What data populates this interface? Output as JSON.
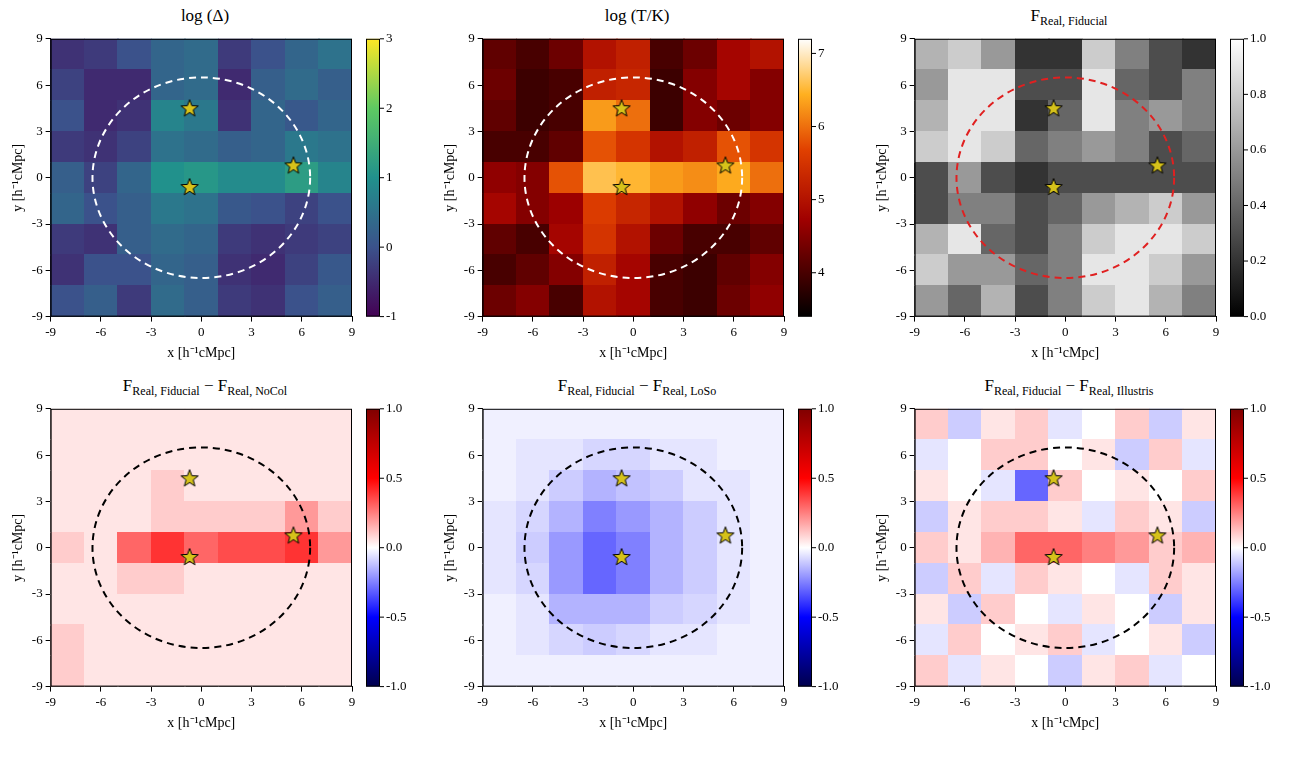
{
  "chart_data": [
    {
      "type": "heatmap",
      "title": [
        "log (Δ)"
      ],
      "x_label": "x [h⁻¹cMpc]",
      "y_label": "y [h⁻¹cMpc]",
      "xlim": [
        -9,
        9
      ],
      "xticks": [
        -9,
        -6,
        -3,
        0,
        3,
        6,
        9
      ],
      "ylim": [
        -9,
        9
      ],
      "yticks": [
        -9,
        -6,
        -3,
        0,
        3,
        6,
        9
      ],
      "grid": false,
      "color": "viridis",
      "heatmap": {
        "x": [
          -8,
          -6,
          -4,
          -2,
          0,
          2,
          4,
          6,
          8
        ],
        "y": [
          8,
          6,
          4,
          2,
          0,
          -2,
          -4,
          -6,
          -8
        ],
        "values": [
          [
            -0.4,
            -0.3,
            0.0,
            0.3,
            0.4,
            -0.3,
            0.0,
            0.3,
            0.5
          ],
          [
            -0.2,
            -0.5,
            -0.5,
            0.3,
            0.4,
            -0.5,
            0.2,
            0.4,
            0.2
          ],
          [
            0.0,
            -0.5,
            -0.4,
            0.8,
            0.6,
            -0.4,
            0.3,
            0.1,
            0.3
          ],
          [
            -0.3,
            -0.4,
            -0.2,
            0.5,
            0.4,
            0.2,
            0.3,
            0.6,
            0.5
          ],
          [
            0.2,
            -0.2,
            0.3,
            1.0,
            1.1,
            0.9,
            0.9,
            1.2,
            0.8
          ],
          [
            0.3,
            0.0,
            0.2,
            0.6,
            0.5,
            0.1,
            0.0,
            -0.2,
            0.0
          ],
          [
            -0.3,
            -0.4,
            0.2,
            0.4,
            0.3,
            -0.3,
            -0.4,
            -0.3,
            -0.2
          ],
          [
            -0.4,
            0.0,
            0.0,
            0.3,
            0.2,
            -0.4,
            -0.5,
            -0.2,
            0.1
          ],
          [
            0.0,
            0.2,
            -0.3,
            0.4,
            0.2,
            -0.3,
            -0.4,
            0.0,
            0.2
          ]
        ]
      },
      "colorbar": {
        "range": [
          -1,
          3
        ],
        "ticks": [
          -1,
          0,
          1,
          2,
          3
        ]
      },
      "stars": {
        "x": [
          -0.7,
          -0.7,
          5.5
        ],
        "y": [
          4.5,
          -0.6,
          0.8
        ],
        "color": "#d6c21a",
        "marker": "star"
      },
      "circle": {
        "center": [
          0,
          0
        ],
        "radius": 6.5,
        "color": "#ffffff",
        "line_style": "dashed"
      }
    },
    {
      "type": "heatmap",
      "title": [
        "log (T/K)"
      ],
      "x_label": "x [h⁻¹cMpc]",
      "y_label": "y [h⁻¹cMpc]",
      "xlim": [
        -9,
        9
      ],
      "xticks": [
        -9,
        -6,
        -3,
        0,
        3,
        6,
        9
      ],
      "ylim": [
        -9,
        9
      ],
      "yticks": [
        -9,
        -6,
        -3,
        0,
        3,
        6,
        9
      ],
      "grid": false,
      "color": "hot",
      "heatmap": {
        "x": [
          -8,
          -6,
          -4,
          -2,
          0,
          2,
          4,
          6,
          8
        ],
        "y": [
          8,
          6,
          4,
          2,
          0,
          -2,
          -4,
          -6,
          -8
        ],
        "values": [
          [
            4.2,
            4.0,
            4.3,
            5.0,
            5.2,
            4.0,
            4.3,
            4.8,
            5.0
          ],
          [
            4.3,
            3.9,
            4.0,
            5.2,
            5.3,
            3.9,
            4.5,
            4.8,
            4.5
          ],
          [
            4.2,
            3.9,
            4.0,
            6.3,
            6.0,
            3.9,
            4.5,
            4.3,
            4.5
          ],
          [
            4.0,
            4.0,
            4.2,
            5.8,
            5.5,
            5.0,
            5.2,
            5.8,
            5.5
          ],
          [
            4.6,
            4.5,
            5.8,
            6.6,
            6.5,
            6.3,
            6.2,
            6.4,
            6.0
          ],
          [
            4.8,
            4.5,
            4.7,
            5.6,
            5.3,
            5.0,
            4.6,
            4.3,
            4.5
          ],
          [
            4.2,
            4.0,
            4.8,
            5.5,
            5.0,
            4.3,
            4.0,
            4.0,
            4.2
          ],
          [
            4.0,
            4.2,
            4.5,
            5.2,
            4.8,
            4.0,
            3.9,
            4.2,
            4.5
          ],
          [
            4.3,
            4.5,
            4.0,
            5.0,
            4.8,
            4.0,
            3.9,
            4.3,
            4.6
          ]
        ]
      },
      "colorbar": {
        "range": [
          3.4,
          7.2
        ],
        "ticks": [
          4,
          5,
          6,
          7
        ]
      },
      "stars": {
        "x": [
          -0.7,
          -0.7,
          5.5
        ],
        "y": [
          4.5,
          -0.6,
          0.8
        ],
        "color": "#d6c21a",
        "marker": "star"
      },
      "circle": {
        "center": [
          0,
          0
        ],
        "radius": 6.5,
        "color": "#ffffff",
        "line_style": "dashed"
      }
    },
    {
      "type": "heatmap",
      "title": [
        "F",
        {
          "sub": "Real, Fiducial"
        }
      ],
      "x_label": "x [h⁻¹cMpc]",
      "y_label": "y [h⁻¹cMpc]",
      "xlim": [
        -9,
        9
      ],
      "xticks": [
        -9,
        -6,
        -3,
        0,
        3,
        6,
        9
      ],
      "ylim": [
        -9,
        9
      ],
      "yticks": [
        -9,
        -6,
        -3,
        0,
        3,
        6,
        9
      ],
      "grid": false,
      "color": "gray",
      "heatmap": {
        "x": [
          -8,
          -6,
          -4,
          -2,
          0,
          2,
          4,
          6,
          8
        ],
        "y": [
          8,
          6,
          4,
          2,
          0,
          -2,
          -4,
          -6,
          -8
        ],
        "values": [
          [
            0.7,
            0.8,
            0.6,
            0.2,
            0.2,
            0.8,
            0.5,
            0.3,
            0.2
          ],
          [
            0.6,
            0.9,
            0.9,
            0.3,
            0.3,
            0.9,
            0.4,
            0.3,
            0.5
          ],
          [
            0.7,
            0.9,
            0.9,
            0.2,
            0.4,
            0.9,
            0.5,
            0.6,
            0.5
          ],
          [
            0.8,
            0.9,
            0.8,
            0.4,
            0.5,
            0.6,
            0.5,
            0.3,
            0.4
          ],
          [
            0.3,
            0.6,
            0.3,
            0.2,
            0.3,
            0.3,
            0.3,
            0.3,
            0.3
          ],
          [
            0.3,
            0.5,
            0.5,
            0.3,
            0.4,
            0.6,
            0.7,
            0.8,
            0.6
          ],
          [
            0.7,
            0.9,
            0.4,
            0.3,
            0.5,
            0.8,
            0.9,
            0.9,
            0.8
          ],
          [
            0.8,
            0.6,
            0.6,
            0.4,
            0.5,
            0.9,
            0.9,
            0.8,
            0.6
          ],
          [
            0.6,
            0.4,
            0.7,
            0.3,
            0.5,
            0.8,
            0.9,
            0.7,
            0.5
          ]
        ]
      },
      "colorbar": {
        "range": [
          0,
          1
        ],
        "ticks": [
          {
            "value": 0,
            "label": "0.0"
          },
          0.2,
          0.4,
          0.6,
          0.8,
          {
            "value": 1,
            "label": "1.0"
          }
        ]
      },
      "stars": {
        "x": [
          -0.7,
          -0.7,
          5.5
        ],
        "y": [
          4.5,
          -0.6,
          0.8
        ],
        "color": "#d6c21a",
        "marker": "star"
      },
      "circle": {
        "center": [
          0,
          0
        ],
        "radius": 6.5,
        "color": "#e02020",
        "line_style": "dashed"
      }
    },
    {
      "type": "heatmap",
      "title": [
        "F",
        {
          "sub": "Real, Fiducial"
        },
        " − F",
        {
          "sub": "Real, NoCol"
        }
      ],
      "x_label": "x [h⁻¹cMpc]",
      "y_label": "y [h⁻¹cMpc]",
      "xlim": [
        -9,
        9
      ],
      "xticks": [
        -9,
        -6,
        -3,
        0,
        3,
        6,
        9
      ],
      "ylim": [
        -9,
        9
      ],
      "yticks": [
        -9,
        -6,
        -3,
        0,
        3,
        6,
        9
      ],
      "grid": false,
      "color": "seismic",
      "heatmap": {
        "x": [
          -8,
          -6,
          -4,
          -2,
          0,
          2,
          4,
          6,
          8
        ],
        "y": [
          8,
          6,
          4,
          2,
          0,
          -2,
          -4,
          -6,
          -8
        ],
        "values": [
          [
            0.05,
            0.05,
            0.05,
            0.05,
            0.05,
            0.05,
            0.05,
            0.05,
            0.05
          ],
          [
            0.05,
            0.05,
            0.05,
            0.05,
            0.05,
            0.05,
            0.05,
            0.05,
            0.05
          ],
          [
            0.05,
            0.05,
            0.05,
            0.1,
            0.05,
            0.05,
            0.05,
            0.05,
            0.05
          ],
          [
            0.05,
            0.05,
            0.05,
            0.1,
            0.1,
            0.1,
            0.1,
            0.2,
            0.1
          ],
          [
            0.1,
            0.05,
            0.3,
            0.4,
            0.3,
            0.35,
            0.35,
            0.4,
            0.2
          ],
          [
            0.05,
            0.05,
            0.1,
            0.1,
            0.05,
            0.05,
            0.05,
            0.05,
            0.05
          ],
          [
            0.05,
            0.05,
            0.05,
            0.05,
            0.05,
            0.05,
            0.05,
            0.05,
            0.05
          ],
          [
            0.1,
            0.05,
            0.05,
            0.05,
            0.05,
            0.05,
            0.05,
            0.05,
            0.05
          ],
          [
            0.1,
            0.05,
            0.05,
            0.05,
            0.05,
            0.05,
            0.05,
            0.05,
            0.05
          ]
        ]
      },
      "colorbar": {
        "range": [
          -1,
          1
        ],
        "ticks": [
          {
            "value": -1,
            "label": "-1.0"
          },
          -0.5,
          {
            "value": 0,
            "label": "0.0"
          },
          0.5,
          {
            "value": 1,
            "label": "1.0"
          }
        ]
      },
      "stars": {
        "x": [
          -0.7,
          -0.7,
          5.5
        ],
        "y": [
          4.5,
          -0.6,
          0.8
        ],
        "color": "#d6c21a",
        "marker": "star"
      },
      "circle": {
        "center": [
          0,
          0
        ],
        "radius": 6.5,
        "color": "#000000",
        "line_style": "dashed"
      }
    },
    {
      "type": "heatmap",
      "title": [
        "F",
        {
          "sub": "Real, Fiducial"
        },
        " − F",
        {
          "sub": "Real, LoSo"
        }
      ],
      "x_label": "x [h⁻¹cMpc]",
      "y_label": "y [h⁻¹cMpc]",
      "xlim": [
        -9,
        9
      ],
      "xticks": [
        -9,
        -6,
        -3,
        0,
        3,
        6,
        9
      ],
      "ylim": [
        -9,
        9
      ],
      "yticks": [
        -9,
        -6,
        -3,
        0,
        3,
        6,
        9
      ],
      "grid": false,
      "color": "seismic",
      "heatmap": {
        "x": [
          -8,
          -6,
          -4,
          -2,
          0,
          2,
          4,
          6,
          8
        ],
        "y": [
          8,
          6,
          4,
          2,
          0,
          -2,
          -4,
          -6,
          -8
        ],
        "values": [
          [
            -0.03,
            -0.03,
            -0.03,
            -0.03,
            -0.03,
            -0.03,
            -0.03,
            -0.03,
            -0.03
          ],
          [
            -0.03,
            -0.05,
            -0.05,
            -0.08,
            -0.08,
            -0.05,
            -0.05,
            -0.03,
            -0.03
          ],
          [
            -0.03,
            -0.05,
            -0.1,
            -0.15,
            -0.12,
            -0.1,
            -0.05,
            -0.05,
            -0.03
          ],
          [
            -0.05,
            -0.08,
            -0.15,
            -0.25,
            -0.2,
            -0.15,
            -0.1,
            -0.05,
            -0.03
          ],
          [
            -0.05,
            -0.1,
            -0.2,
            -0.3,
            -0.25,
            -0.15,
            -0.1,
            -0.05,
            -0.03
          ],
          [
            -0.05,
            -0.08,
            -0.2,
            -0.3,
            -0.25,
            -0.15,
            -0.1,
            -0.05,
            -0.03
          ],
          [
            -0.03,
            -0.05,
            -0.15,
            -0.15,
            -0.15,
            -0.1,
            -0.08,
            -0.05,
            -0.03
          ],
          [
            -0.03,
            -0.05,
            -0.08,
            -0.1,
            -0.08,
            -0.05,
            -0.05,
            -0.03,
            -0.03
          ],
          [
            -0.03,
            -0.03,
            -0.03,
            -0.03,
            -0.03,
            -0.03,
            -0.03,
            -0.03,
            -0.03
          ]
        ]
      },
      "colorbar": {
        "range": [
          -1,
          1
        ],
        "ticks": [
          {
            "value": -1,
            "label": "-1.0"
          },
          -0.5,
          {
            "value": 0,
            "label": "0.0"
          },
          0.5,
          {
            "value": 1,
            "label": "1.0"
          }
        ]
      },
      "stars": {
        "x": [
          -0.7,
          -0.7,
          5.5
        ],
        "y": [
          4.5,
          -0.6,
          0.8
        ],
        "color": "#d6c21a",
        "marker": "star"
      },
      "circle": {
        "center": [
          0,
          0
        ],
        "radius": 6.5,
        "color": "#000000",
        "line_style": "dashed"
      }
    },
    {
      "type": "heatmap",
      "title": [
        "F",
        {
          "sub": "Real, Fiducial"
        },
        " − F",
        {
          "sub": "Real, Illustris"
        }
      ],
      "x_label": "x [h⁻¹cMpc]",
      "y_label": "y [h⁻¹cMpc]",
      "xlim": [
        -9,
        9
      ],
      "xticks": [
        -9,
        -6,
        -3,
        0,
        3,
        6,
        9
      ],
      "ylim": [
        -9,
        9
      ],
      "yticks": [
        -9,
        -6,
        -3,
        0,
        3,
        6,
        9
      ],
      "grid": false,
      "color": "seismic",
      "heatmap": {
        "x": [
          -8,
          -6,
          -4,
          -2,
          0,
          2,
          4,
          6,
          8
        ],
        "y": [
          8,
          6,
          4,
          2,
          0,
          -2,
          -4,
          -6,
          -8
        ],
        "values": [
          [
            0.1,
            -0.1,
            0.05,
            0.1,
            -0.05,
            0.0,
            0.1,
            -0.1,
            0.05
          ],
          [
            -0.05,
            0.0,
            0.1,
            0.1,
            0.0,
            0.05,
            -0.1,
            0.1,
            -0.05
          ],
          [
            0.05,
            0.0,
            -0.05,
            -0.3,
            0.1,
            0.0,
            0.05,
            0.0,
            0.1
          ],
          [
            -0.1,
            0.05,
            0.1,
            0.1,
            0.05,
            -0.05,
            0.1,
            0.05,
            -0.1
          ],
          [
            0.1,
            0.05,
            0.15,
            0.3,
            0.3,
            0.25,
            0.2,
            0.1,
            0.15
          ],
          [
            -0.1,
            0.1,
            -0.05,
            0.1,
            0.05,
            0.0,
            -0.05,
            0.1,
            0.05
          ],
          [
            0.05,
            -0.1,
            0.1,
            0.0,
            -0.05,
            0.05,
            0.0,
            -0.1,
            0.05
          ],
          [
            -0.05,
            0.1,
            0.0,
            0.05,
            0.1,
            -0.05,
            0.0,
            0.05,
            -0.1
          ],
          [
            0.1,
            -0.05,
            0.05,
            0.0,
            -0.1,
            0.05,
            0.1,
            -0.05,
            0.0
          ]
        ]
      },
      "colorbar": {
        "range": [
          -1,
          1
        ],
        "ticks": [
          {
            "value": -1,
            "label": "-1.0"
          },
          -0.5,
          {
            "value": 0,
            "label": "0.0"
          },
          0.5,
          {
            "value": 1,
            "label": "1.0"
          }
        ]
      },
      "stars": {
        "x": [
          -0.7,
          -0.7,
          5.5
        ],
        "y": [
          4.5,
          -0.6,
          0.8
        ],
        "color": "#d6c21a",
        "marker": "star"
      },
      "circle": {
        "center": [
          0,
          0
        ],
        "radius": 6.5,
        "color": "#000000",
        "line_style": "dashed"
      }
    }
  ]
}
